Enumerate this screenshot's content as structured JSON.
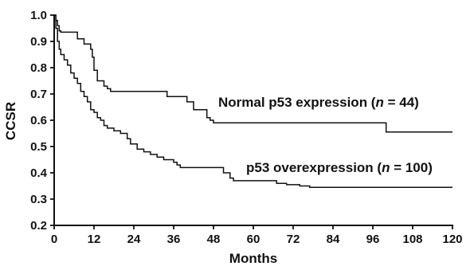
{
  "chart_data": {
    "type": "line",
    "step": true,
    "xlabel": "Months",
    "ylabel": "CCSR",
    "xlim": [
      0,
      120
    ],
    "ylim": [
      0.2,
      1.0
    ],
    "x_ticks": [
      0,
      12,
      24,
      36,
      48,
      60,
      72,
      84,
      96,
      108,
      120
    ],
    "y_ticks": [
      "0.2",
      "0.3",
      "0.4",
      "0.5",
      "0.6",
      "0.7",
      "0.8",
      "0.9",
      "1.0"
    ],
    "grid": false,
    "series": [
      {
        "name": "Normal p53 expression",
        "n": "44",
        "label_text_before": "Normal p53 expression (",
        "label_text_italic": "n",
        "label_text_after": " = 44)",
        "x": [
          0,
          0.5,
          1,
          1.5,
          2,
          7,
          9,
          11,
          11.5,
          12,
          13,
          15,
          16,
          17,
          34,
          40,
          42,
          46,
          47,
          48,
          50,
          100,
          120
        ],
        "y": [
          1.0,
          0.98,
          0.96,
          0.94,
          0.935,
          0.91,
          0.89,
          0.87,
          0.84,
          0.79,
          0.75,
          0.73,
          0.72,
          0.71,
          0.69,
          0.67,
          0.64,
          0.61,
          0.6,
          0.59,
          0.59,
          0.555,
          0.555
        ]
      },
      {
        "name": "p53 overexpression",
        "n": "100",
        "label_text_before": "p53 overexpression (",
        "label_text_italic": "n",
        "label_text_after": " = 100)",
        "x": [
          0,
          0.5,
          1,
          1.5,
          2,
          3,
          4,
          5,
          6,
          7,
          8,
          9,
          10,
          11,
          12,
          13,
          14,
          15,
          16,
          18,
          20,
          22,
          23,
          25,
          27,
          29,
          31,
          33,
          36,
          37,
          38,
          40,
          51,
          53,
          54,
          67,
          70,
          74,
          77,
          88,
          100,
          120
        ],
        "y": [
          1.0,
          0.95,
          0.9,
          0.87,
          0.85,
          0.83,
          0.81,
          0.78,
          0.76,
          0.74,
          0.71,
          0.69,
          0.67,
          0.64,
          0.63,
          0.61,
          0.6,
          0.58,
          0.57,
          0.56,
          0.55,
          0.53,
          0.51,
          0.49,
          0.48,
          0.47,
          0.46,
          0.45,
          0.44,
          0.43,
          0.42,
          0.42,
          0.4,
          0.38,
          0.37,
          0.36,
          0.355,
          0.35,
          0.345,
          0.345,
          0.345,
          0.345
        ]
      }
    ]
  }
}
